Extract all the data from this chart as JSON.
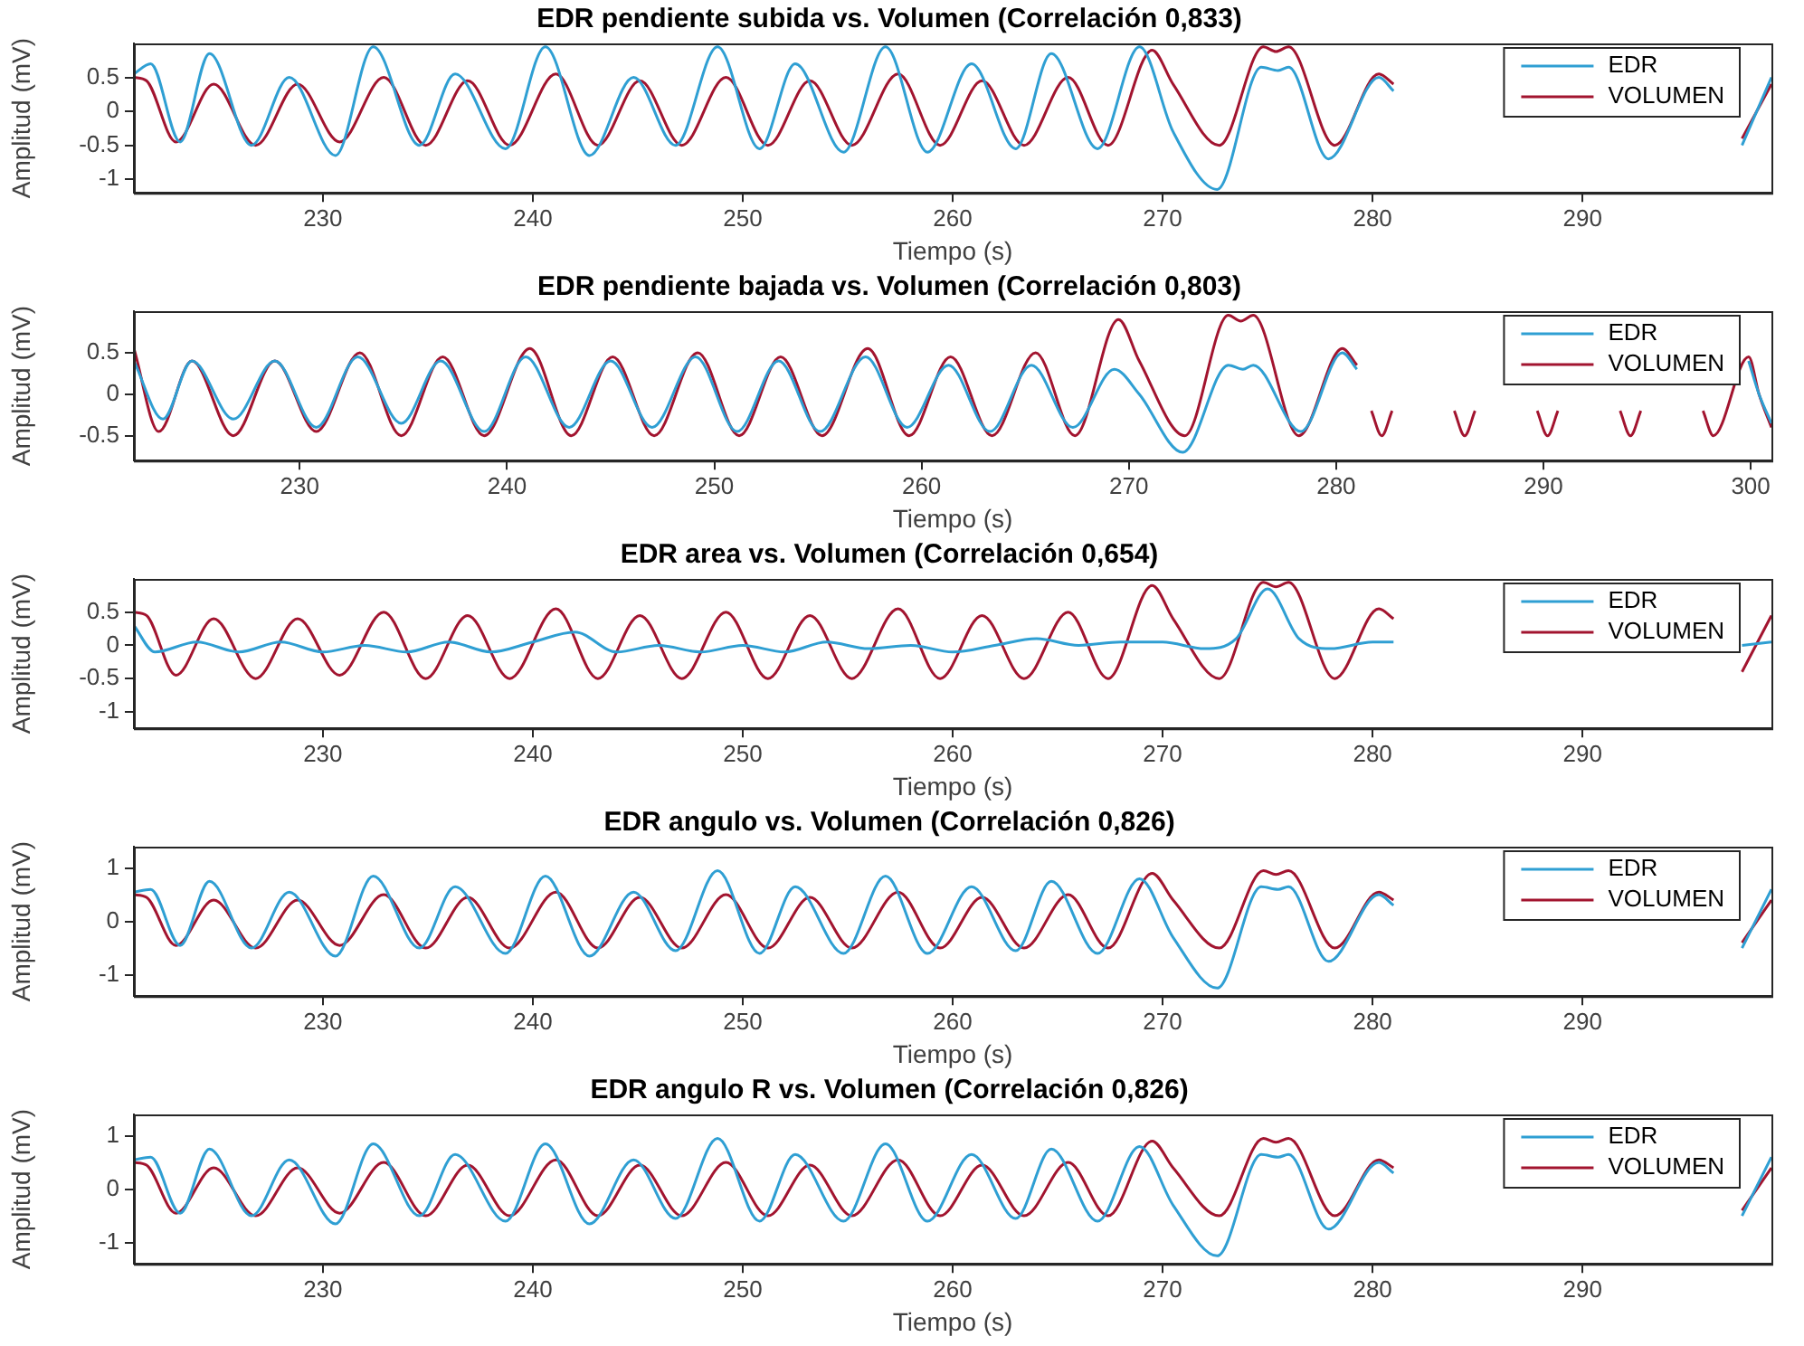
{
  "chart_data": [
    {
      "type": "line",
      "title": "EDR pendiente subida vs. Volumen (Correlación 0,833)",
      "xlabel": "Tiempo (s)",
      "ylabel": "Amplitud (mV)",
      "xlim": [
        221,
        299
      ],
      "xticks": [
        230,
        240,
        250,
        260,
        270,
        280,
        290
      ],
      "ylim": [
        -1.2,
        1
      ],
      "yticks": [
        -1,
        -0.5,
        0,
        0.5
      ],
      "legend": "top right",
      "marker": "none",
      "grid": false,
      "series": [
        {
          "name": "EDR",
          "color": "#2f9fd3",
          "x": [
            221,
            221.8,
            223.2,
            224.6,
            226.6,
            228.4,
            230.6,
            232.4,
            234.6,
            236.3,
            238.7,
            240.6,
            242.7,
            244.8,
            246.8,
            248.8,
            250.8,
            252.5,
            254.8,
            256.8,
            258.8,
            260.9,
            263,
            264.7,
            266.9,
            268.9,
            270.5,
            272.6,
            274.7,
            275.5,
            276,
            277.9,
            280.3,
            281,
            289,
            297.6,
            299
          ],
          "values": [
            0.55,
            0.7,
            -0.45,
            0.85,
            -0.5,
            0.5,
            -0.65,
            0.95,
            -0.5,
            0.55,
            -0.55,
            0.95,
            -0.65,
            0.5,
            -0.5,
            0.95,
            -0.55,
            0.7,
            -0.6,
            0.95,
            -0.6,
            0.7,
            -0.55,
            0.85,
            -0.55,
            0.95,
            -0.3,
            -1.15,
            0.65,
            0.6,
            0.65,
            -0.7,
            0.5,
            0.3,
            null,
            -0.5,
            0.5
          ]
        },
        {
          "name": "VOLUMEN",
          "color": "#a2142f",
          "x": [
            221,
            221.6,
            223,
            224.8,
            226.8,
            228.8,
            230.8,
            232.9,
            234.9,
            236.9,
            238.9,
            241.1,
            243.1,
            245.1,
            247.1,
            249.2,
            251.2,
            253.2,
            255.2,
            257.4,
            259.4,
            261.4,
            263.4,
            265.5,
            267.4,
            269.5,
            270.5,
            272.7,
            274.8,
            275.4,
            276,
            278.2,
            280.3,
            281,
            289,
            297.6,
            299
          ],
          "values": [
            0.5,
            0.45,
            -0.45,
            0.4,
            -0.5,
            0.4,
            -0.45,
            0.5,
            -0.5,
            0.45,
            -0.5,
            0.55,
            -0.5,
            0.45,
            -0.5,
            0.5,
            -0.5,
            0.45,
            -0.5,
            0.55,
            -0.5,
            0.45,
            -0.5,
            0.5,
            -0.5,
            0.9,
            0.4,
            -0.5,
            0.95,
            0.88,
            0.95,
            -0.5,
            0.55,
            0.4,
            null,
            -0.4,
            0.4
          ]
        }
      ]
    },
    {
      "type": "line",
      "title": "EDR pendiente bajada vs. Volumen (Correlación 0,803)",
      "xlabel": "Tiempo (s)",
      "ylabel": "Amplitud (mV)",
      "xlim": [
        222,
        301
      ],
      "xticks": [
        230,
        240,
        250,
        260,
        270,
        280,
        290,
        300
      ],
      "ylim": [
        -0.8,
        1
      ],
      "yticks": [
        -0.5,
        0,
        0.5
      ],
      "legend": "top right",
      "marker": "none",
      "grid": false,
      "series": [
        {
          "name": "EDR",
          "color": "#2f9fd3",
          "x": [
            222,
            223.4,
            224.8,
            226.8,
            228.8,
            230.8,
            232.8,
            234.9,
            236.8,
            238.9,
            240.9,
            243,
            245,
            247,
            249.1,
            251.1,
            253.1,
            255.1,
            257.3,
            259.3,
            261.3,
            263.3,
            265.3,
            267.3,
            269.3,
            270.5,
            272.6,
            274.8,
            275.5,
            276,
            278.3,
            280.3,
            281,
            289,
            299.9,
            300.4,
            301
          ],
          "values": [
            0.4,
            -0.3,
            0.4,
            -0.3,
            0.4,
            -0.4,
            0.45,
            -0.35,
            0.4,
            -0.45,
            0.45,
            -0.4,
            0.4,
            -0.4,
            0.45,
            -0.45,
            0.4,
            -0.45,
            0.45,
            -0.4,
            0.35,
            -0.45,
            0.35,
            -0.4,
            0.3,
            0,
            -0.7,
            0.35,
            0.3,
            0.35,
            -0.45,
            0.5,
            0.3,
            null,
            0.4,
            0,
            -0.35
          ]
        },
        {
          "name": "VOLUMEN",
          "color": "#a2142f",
          "x": [
            222,
            223.2,
            224.8,
            226.8,
            228.8,
            230.8,
            232.9,
            234.9,
            236.9,
            238.9,
            241.1,
            243.1,
            245.1,
            247.1,
            249.2,
            251.2,
            253.2,
            255.2,
            257.4,
            259.4,
            261.4,
            263.4,
            265.5,
            267.4,
            269.5,
            270.5,
            272.7,
            274.8,
            275.4,
            276,
            278.2,
            280.3,
            281,
            281.5,
            281.7,
            282.2,
            282.7,
            283,
            285.7,
            286.2,
            286.7,
            287,
            289.7,
            290.2,
            290.7,
            291,
            293.7,
            294.2,
            294.7,
            295,
            297.7,
            298.2,
            299.9,
            300.4,
            301
          ],
          "values": [
            0.55,
            -0.45,
            0.4,
            -0.5,
            0.4,
            -0.45,
            0.5,
            -0.5,
            0.45,
            -0.5,
            0.55,
            -0.5,
            0.45,
            -0.5,
            0.5,
            -0.5,
            0.45,
            -0.5,
            0.55,
            -0.5,
            0.45,
            -0.5,
            0.5,
            -0.5,
            0.9,
            0.4,
            -0.5,
            0.95,
            0.88,
            0.95,
            -0.5,
            0.55,
            0.35,
            null,
            -0.2,
            -0.5,
            -0.2,
            null,
            -0.2,
            -0.5,
            -0.2,
            null,
            -0.2,
            -0.5,
            -0.2,
            null,
            -0.2,
            -0.5,
            -0.2,
            null,
            -0.2,
            -0.5,
            0.45,
            0,
            -0.4
          ]
        }
      ]
    },
    {
      "type": "line",
      "title": "EDR area vs. Volumen (Correlación 0,654)",
      "xlabel": "Tiempo (s)",
      "ylabel": "Amplitud (mV)",
      "xlim": [
        221,
        299
      ],
      "xticks": [
        230,
        240,
        250,
        260,
        270,
        280,
        290
      ],
      "ylim": [
        -1.25,
        1
      ],
      "yticks": [
        -1,
        -0.5,
        0,
        0.5
      ],
      "legend": "top right",
      "marker": "none",
      "grid": false,
      "series": [
        {
          "name": "EDR",
          "color": "#2f9fd3",
          "x": [
            221,
            222,
            224,
            226,
            228,
            230,
            232,
            234,
            236,
            238,
            240,
            242,
            244,
            246,
            248,
            250,
            252,
            254,
            256,
            258,
            260,
            262,
            264,
            266,
            268,
            270,
            272,
            273.5,
            275,
            276.5,
            278,
            280,
            281,
            289,
            297.6,
            299
          ],
          "values": [
            0.3,
            -0.1,
            0.05,
            -0.1,
            0.05,
            -0.1,
            0,
            -0.1,
            0.05,
            -0.1,
            0.05,
            0.2,
            -0.1,
            0,
            -0.1,
            0,
            -0.1,
            0.05,
            -0.05,
            0,
            -0.1,
            0,
            0.1,
            0,
            0.05,
            0.05,
            -0.05,
            0.1,
            0.85,
            0.1,
            -0.05,
            0.05,
            0.05,
            null,
            0,
            0.05
          ]
        },
        {
          "name": "VOLUMEN",
          "color": "#a2142f",
          "x": [
            221,
            221.6,
            223,
            224.8,
            226.8,
            228.8,
            230.8,
            232.9,
            234.9,
            236.9,
            238.9,
            241.1,
            243.1,
            245.1,
            247.1,
            249.2,
            251.2,
            253.2,
            255.2,
            257.4,
            259.4,
            261.4,
            263.4,
            265.5,
            267.4,
            269.5,
            270.5,
            272.7,
            274.8,
            275.4,
            276,
            278.2,
            280.3,
            281,
            289,
            297.6,
            299
          ],
          "values": [
            0.5,
            0.45,
            -0.45,
            0.4,
            -0.5,
            0.4,
            -0.45,
            0.5,
            -0.5,
            0.45,
            -0.5,
            0.55,
            -0.5,
            0.45,
            -0.5,
            0.5,
            -0.5,
            0.45,
            -0.5,
            0.55,
            -0.5,
            0.45,
            -0.5,
            0.5,
            -0.5,
            0.9,
            0.4,
            -0.5,
            0.95,
            0.88,
            0.95,
            -0.5,
            0.55,
            0.4,
            null,
            -0.4,
            0.45
          ]
        }
      ]
    },
    {
      "type": "line",
      "title": "EDR angulo vs. Volumen (Correlación 0,826)",
      "xlabel": "Tiempo (s)",
      "ylabel": "Amplitud (mV)",
      "xlim": [
        221,
        299
      ],
      "xticks": [
        230,
        240,
        250,
        260,
        270,
        280,
        290
      ],
      "ylim": [
        -1.4,
        1.4
      ],
      "yticks": [
        -1,
        0,
        1
      ],
      "legend": "top right",
      "marker": "none",
      "grid": false,
      "series": [
        {
          "name": "EDR",
          "color": "#2f9fd3",
          "x": [
            221,
            221.8,
            223.2,
            224.6,
            226.6,
            228.4,
            230.6,
            232.4,
            234.6,
            236.3,
            238.7,
            240.6,
            242.7,
            244.8,
            246.8,
            248.8,
            250.8,
            252.5,
            254.8,
            256.8,
            258.8,
            260.9,
            263,
            264.7,
            266.9,
            268.9,
            270.5,
            272.6,
            274.7,
            275.5,
            276,
            277.9,
            280.3,
            281,
            289,
            297.6,
            299
          ],
          "values": [
            0.55,
            0.6,
            -0.45,
            0.75,
            -0.5,
            0.55,
            -0.65,
            0.85,
            -0.5,
            0.65,
            -0.6,
            0.85,
            -0.65,
            0.55,
            -0.55,
            0.95,
            -0.6,
            0.65,
            -0.6,
            0.85,
            -0.6,
            0.65,
            -0.55,
            0.75,
            -0.6,
            0.8,
            -0.3,
            -1.25,
            0.65,
            0.6,
            0.65,
            -0.75,
            0.5,
            0.3,
            null,
            -0.5,
            0.6
          ]
        },
        {
          "name": "VOLUMEN",
          "color": "#a2142f",
          "x": [
            221,
            221.6,
            223,
            224.8,
            226.8,
            228.8,
            230.8,
            232.9,
            234.9,
            236.9,
            238.9,
            241.1,
            243.1,
            245.1,
            247.1,
            249.2,
            251.2,
            253.2,
            255.2,
            257.4,
            259.4,
            261.4,
            263.4,
            265.5,
            267.4,
            269.5,
            270.5,
            272.7,
            274.8,
            275.4,
            276,
            278.2,
            280.3,
            281,
            289,
            297.6,
            299
          ],
          "values": [
            0.5,
            0.45,
            -0.45,
            0.4,
            -0.5,
            0.4,
            -0.45,
            0.5,
            -0.5,
            0.45,
            -0.5,
            0.55,
            -0.5,
            0.45,
            -0.5,
            0.5,
            -0.5,
            0.45,
            -0.5,
            0.55,
            -0.5,
            0.45,
            -0.5,
            0.5,
            -0.5,
            0.9,
            0.4,
            -0.5,
            0.95,
            0.88,
            0.95,
            -0.5,
            0.55,
            0.4,
            null,
            -0.4,
            0.4
          ]
        }
      ]
    },
    {
      "type": "line",
      "title": "EDR angulo R vs. Volumen (Correlación 0,826)",
      "xlabel": "Tiempo (s)",
      "ylabel": "Amplitud (mV)",
      "xlim": [
        221,
        299
      ],
      "xticks": [
        230,
        240,
        250,
        260,
        270,
        280,
        290
      ],
      "ylim": [
        -1.4,
        1.4
      ],
      "yticks": [
        -1,
        0,
        1
      ],
      "legend": "top right",
      "marker": "none",
      "grid": false,
      "series": [
        {
          "name": "EDR",
          "color": "#2f9fd3",
          "x": [
            221,
            221.8,
            223.2,
            224.6,
            226.6,
            228.4,
            230.6,
            232.4,
            234.6,
            236.3,
            238.7,
            240.6,
            242.7,
            244.8,
            246.8,
            248.8,
            250.8,
            252.5,
            254.8,
            256.8,
            258.8,
            260.9,
            263,
            264.7,
            266.9,
            268.9,
            270.5,
            272.6,
            274.7,
            275.5,
            276,
            277.9,
            280.3,
            281,
            289,
            297.6,
            299
          ],
          "values": [
            0.55,
            0.6,
            -0.45,
            0.75,
            -0.5,
            0.55,
            -0.65,
            0.85,
            -0.5,
            0.65,
            -0.6,
            0.85,
            -0.65,
            0.55,
            -0.55,
            0.95,
            -0.6,
            0.65,
            -0.6,
            0.85,
            -0.6,
            0.65,
            -0.55,
            0.75,
            -0.6,
            0.8,
            -0.3,
            -1.25,
            0.65,
            0.6,
            0.65,
            -0.75,
            0.5,
            0.3,
            null,
            -0.5,
            0.6
          ]
        },
        {
          "name": "VOLUMEN",
          "color": "#a2142f",
          "x": [
            221,
            221.6,
            223,
            224.8,
            226.8,
            228.8,
            230.8,
            232.9,
            234.9,
            236.9,
            238.9,
            241.1,
            243.1,
            245.1,
            247.1,
            249.2,
            251.2,
            253.2,
            255.2,
            257.4,
            259.4,
            261.4,
            263.4,
            265.5,
            267.4,
            269.5,
            270.5,
            272.7,
            274.8,
            275.4,
            276,
            278.2,
            280.3,
            281,
            289,
            297.6,
            299
          ],
          "values": [
            0.5,
            0.45,
            -0.45,
            0.4,
            -0.5,
            0.4,
            -0.45,
            0.5,
            -0.5,
            0.45,
            -0.5,
            0.55,
            -0.5,
            0.45,
            -0.5,
            0.5,
            -0.5,
            0.45,
            -0.5,
            0.55,
            -0.5,
            0.45,
            -0.5,
            0.5,
            -0.5,
            0.9,
            0.4,
            -0.5,
            0.95,
            0.88,
            0.95,
            -0.5,
            0.55,
            0.4,
            null,
            -0.4,
            0.4
          ]
        }
      ]
    }
  ]
}
